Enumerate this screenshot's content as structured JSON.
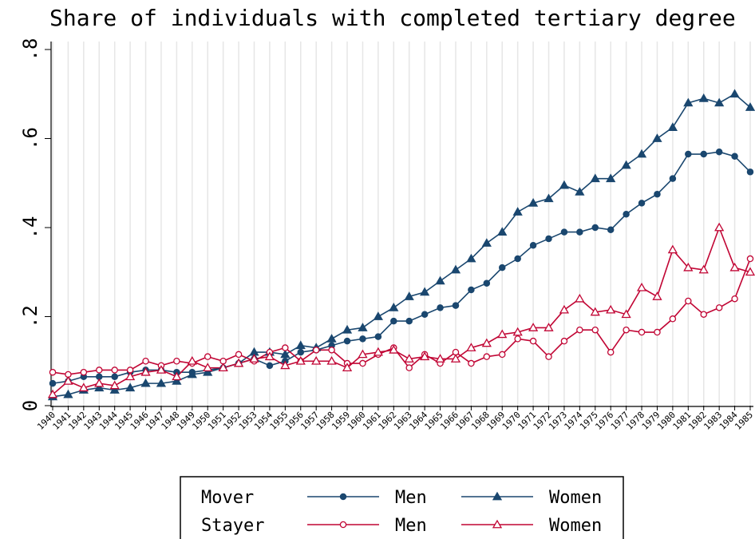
{
  "chart_data": {
    "type": "line",
    "title": "Share of individuals with completed tertiary degree",
    "x": [
      1940,
      1941,
      1942,
      1943,
      1944,
      1945,
      1946,
      1947,
      1948,
      1949,
      1950,
      1951,
      1952,
      1953,
      1954,
      1955,
      1956,
      1957,
      1958,
      1959,
      1960,
      1961,
      1962,
      1963,
      1964,
      1965,
      1966,
      1967,
      1968,
      1969,
      1970,
      1971,
      1972,
      1973,
      1974,
      1975,
      1976,
      1977,
      1978,
      1979,
      1980,
      1981,
      1982,
      1983,
      1984,
      1985
    ],
    "xlim": [
      1940,
      1985
    ],
    "ylim": [
      0,
      0.8
    ],
    "yticks": [
      0,
      {
        "value": 0.2,
        "label": ".2"
      },
      {
        "value": 0.4,
        "label": ".4"
      },
      {
        "value": 0.6,
        "label": ".6"
      },
      {
        "value": 0.8,
        "label": ".8"
      }
    ],
    "grid": true,
    "series": [
      {
        "group": "Mover",
        "name": "Men",
        "color": "#1a476f",
        "marker": "circle",
        "filled": true,
        "values": [
          0.05,
          0.055,
          0.065,
          0.065,
          0.065,
          0.075,
          0.08,
          0.08,
          0.075,
          0.075,
          0.08,
          0.085,
          0.095,
          0.105,
          0.09,
          0.1,
          0.12,
          0.125,
          0.135,
          0.145,
          0.15,
          0.155,
          0.19,
          0.19,
          0.205,
          0.22,
          0.225,
          0.26,
          0.275,
          0.31,
          0.33,
          0.36,
          0.375,
          0.39,
          0.39,
          0.4,
          0.395,
          0.43,
          0.455,
          0.475,
          0.51,
          0.565,
          0.565,
          0.57,
          0.56,
          0.525
        ]
      },
      {
        "group": "Mover",
        "name": "Women",
        "color": "#1a476f",
        "marker": "triangle",
        "filled": true,
        "values": [
          0.02,
          0.025,
          0.035,
          0.04,
          0.035,
          0.04,
          0.05,
          0.05,
          0.055,
          0.07,
          0.075,
          0.085,
          0.095,
          0.12,
          0.12,
          0.115,
          0.135,
          0.13,
          0.15,
          0.17,
          0.175,
          0.2,
          0.22,
          0.245,
          0.255,
          0.28,
          0.305,
          0.33,
          0.365,
          0.39,
          0.435,
          0.455,
          0.465,
          0.495,
          0.48,
          0.51,
          0.51,
          0.54,
          0.565,
          0.6,
          0.625,
          0.68,
          0.69,
          0.68,
          0.7,
          0.67
        ]
      },
      {
        "group": "Stayer",
        "name": "Men",
        "color": "#c10534",
        "marker": "circle",
        "filled": false,
        "values": [
          0.075,
          0.07,
          0.075,
          0.08,
          0.08,
          0.08,
          0.1,
          0.09,
          0.1,
          0.095,
          0.11,
          0.1,
          0.115,
          0.1,
          0.12,
          0.13,
          0.1,
          0.125,
          0.125,
          0.095,
          0.095,
          0.115,
          0.13,
          0.085,
          0.115,
          0.095,
          0.12,
          0.095,
          0.11,
          0.115,
          0.15,
          0.145,
          0.11,
          0.145,
          0.17,
          0.17,
          0.12,
          0.17,
          0.165,
          0.165,
          0.195,
          0.235,
          0.205,
          0.22,
          0.24,
          0.33
        ]
      },
      {
        "group": "Stayer",
        "name": "Women",
        "color": "#c10534",
        "marker": "triangle",
        "filled": false,
        "values": [
          0.025,
          0.055,
          0.04,
          0.05,
          0.045,
          0.065,
          0.075,
          0.08,
          0.065,
          0.1,
          0.085,
          0.085,
          0.095,
          0.105,
          0.11,
          0.09,
          0.1,
          0.1,
          0.1,
          0.085,
          0.115,
          0.12,
          0.125,
          0.105,
          0.11,
          0.105,
          0.105,
          0.13,
          0.14,
          0.16,
          0.165,
          0.175,
          0.175,
          0.215,
          0.24,
          0.21,
          0.215,
          0.205,
          0.265,
          0.245,
          0.35,
          0.31,
          0.305,
          0.4,
          0.31,
          0.3
        ]
      }
    ]
  }
}
